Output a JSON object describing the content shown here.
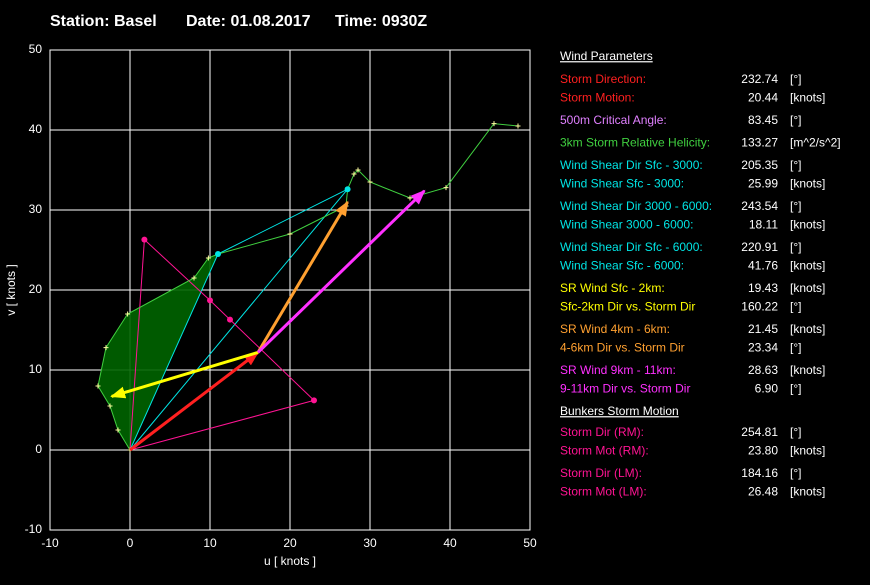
{
  "header": {
    "station": "Station: Basel",
    "date": "Date: 01.08.2017",
    "time": "Time: 0930Z"
  },
  "chart_data": {
    "type": "hodograph",
    "xlabel": "u  [ knots ]",
    "ylabel": "v  [ knots ]",
    "xlim": [
      -10,
      50
    ],
    "ylim": [
      -10,
      50
    ],
    "xticks": [
      -10,
      0,
      10,
      20,
      30,
      40,
      50
    ],
    "yticks": [
      -10,
      0,
      10,
      20,
      30,
      40,
      50
    ],
    "grid": true,
    "fill_color": "#006400",
    "hodograph": {
      "color": "#40d040",
      "x": [
        0,
        -1.5,
        -2.5,
        -4,
        -3,
        -0.3,
        8,
        9.8,
        11,
        20,
        27,
        27.2,
        28,
        28.5,
        30,
        35,
        39.5,
        45.5,
        48.5
      ],
      "y": [
        0,
        2.5,
        5.5,
        8,
        12.8,
        17,
        21.5,
        24,
        24.5,
        27,
        30.5,
        32.6,
        34.5,
        35,
        33.5,
        31.5,
        32.8,
        40.8,
        40.5
      ]
    },
    "lines": [
      {
        "color": "#00e5e5",
        "x": [
          0,
          11
        ],
        "y": [
          0,
          24.5
        ]
      },
      {
        "color": "#00e5e5",
        "x": [
          0,
          27.2
        ],
        "y": [
          0,
          32.6
        ]
      },
      {
        "color": "#00e5e5",
        "x": [
          11,
          27.2
        ],
        "y": [
          24.5,
          32.6
        ]
      },
      {
        "color": "#ff1493",
        "x": [
          0,
          23
        ],
        "y": [
          0,
          6.2
        ]
      },
      {
        "color": "#ff1493",
        "x": [
          0,
          1.8
        ],
        "y": [
          0,
          26.3
        ]
      },
      {
        "color": "#ff1493",
        "x": [
          1.8,
          10,
          23
        ],
        "y": [
          26.3,
          18.7,
          6.2
        ]
      }
    ],
    "points": [
      {
        "color": "#00e5e5",
        "x": 11,
        "y": 24.5
      },
      {
        "color": "#00e5e5",
        "x": 27.2,
        "y": 32.6
      },
      {
        "color": "#ff1493",
        "x": 10,
        "y": 18.7
      },
      {
        "color": "#ff1493",
        "x": 12.5,
        "y": 16.3
      },
      {
        "color": "#ff1493",
        "x": 23,
        "y": 6.2
      },
      {
        "color": "#ff1493",
        "x": 1.8,
        "y": 26.3
      }
    ],
    "arrows": [
      {
        "color": "#ff2020",
        "x": [
          0,
          16
        ],
        "y": [
          0,
          12.2
        ]
      },
      {
        "color": "#ffff00",
        "x": [
          16,
          -2.3
        ],
        "y": [
          12.2,
          6.7
        ]
      },
      {
        "color": "#ffa030",
        "x": [
          16,
          27.2
        ],
        "y": [
          12.2,
          31
        ]
      },
      {
        "color": "#ff30ff",
        "x": [
          16,
          36.8
        ],
        "y": [
          12.2,
          32.4
        ]
      }
    ]
  },
  "panel": {
    "wind_title": "Wind Parameters",
    "wind_groups": [
      [
        {
          "label": "Storm Direction:",
          "value": "232.74",
          "unit": "[°]",
          "color": "#ff2020"
        },
        {
          "label": "Storm Motion:",
          "value": "20.44",
          "unit": "[knots]",
          "color": "#ff2020"
        }
      ],
      [
        {
          "label": "500m Critical Angle:",
          "value": "83.45",
          "unit": "[°]",
          "color": "#e080ff"
        }
      ],
      [
        {
          "label": "3km Storm Relative Helicity:",
          "value": "133.27",
          "unit": "[m^2/s^2]",
          "color": "#40d040"
        }
      ],
      [
        {
          "label": "Wind Shear Dir Sfc - 3000:",
          "value": "205.35",
          "unit": "[°]",
          "color": "#00e5e5"
        },
        {
          "label": "Wind Shear Sfc - 3000:",
          "value": "25.99",
          "unit": "[knots]",
          "color": "#00e5e5"
        }
      ],
      [
        {
          "label": "Wind Shear Dir 3000 - 6000:",
          "value": "243.54",
          "unit": "[°]",
          "color": "#00e5e5"
        },
        {
          "label": "Wind Shear 3000 - 6000:",
          "value": "18.11",
          "unit": "[knots]",
          "color": "#00e5e5"
        }
      ],
      [
        {
          "label": "Wind Shear Dir Sfc - 6000:",
          "value": "220.91",
          "unit": "[°]",
          "color": "#00e5e5"
        },
        {
          "label": "Wind Shear Sfc - 6000:",
          "value": "41.76",
          "unit": "[knots]",
          "color": "#00e5e5"
        }
      ],
      [
        {
          "label": "SR Wind Sfc - 2km:",
          "value": "19.43",
          "unit": "[knots]",
          "color": "#ffff00"
        },
        {
          "label": "Sfc-2km Dir vs. Storm Dir",
          "value": "160.22",
          "unit": "[°]",
          "color": "#ffff00"
        }
      ],
      [
        {
          "label": "SR Wind 4km - 6km:",
          "value": "21.45",
          "unit": "[knots]",
          "color": "#ffa030"
        },
        {
          "label": "4-6km Dir vs. Storm Dir",
          "value": "23.34",
          "unit": "[°]",
          "color": "#ffa030"
        }
      ],
      [
        {
          "label": "SR Wind 9km - 11km:",
          "value": "28.63",
          "unit": "[knots]",
          "color": "#ff30ff"
        },
        {
          "label": "9-11km Dir vs. Storm Dir",
          "value": "6.90",
          "unit": "[°]",
          "color": "#ff30ff"
        }
      ]
    ],
    "bunkers_title": "Bunkers Storm Motion",
    "bunkers_groups": [
      [
        {
          "label": "Storm Dir (RM):",
          "value": "254.81",
          "unit": "[°]",
          "color": "#ff1493"
        },
        {
          "label": "Storm Mot (RM):",
          "value": "23.80",
          "unit": "[knots]",
          "color": "#ff1493"
        }
      ],
      [
        {
          "label": "Storm Dir (LM):",
          "value": "184.16",
          "unit": "[°]",
          "color": "#ff1493"
        },
        {
          "label": "Storm Mot (LM):",
          "value": "26.48",
          "unit": "[knots]",
          "color": "#ff1493"
        }
      ]
    ]
  }
}
